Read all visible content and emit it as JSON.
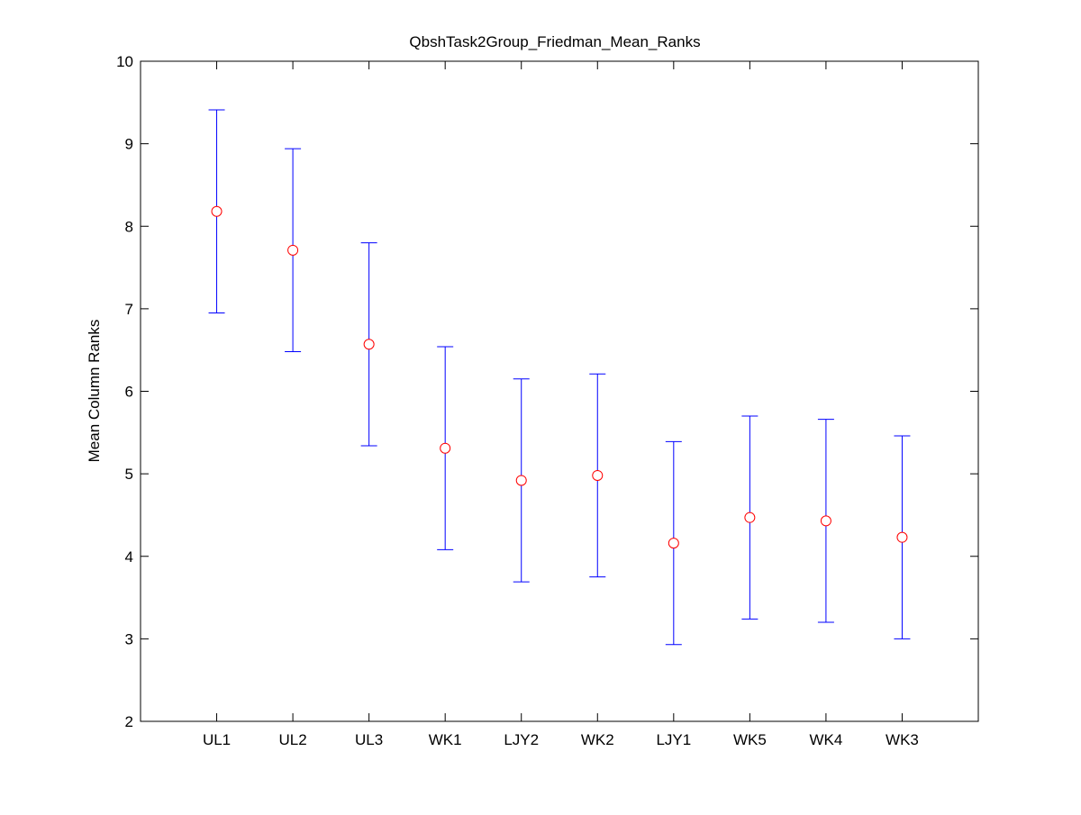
{
  "chart_data": {
    "type": "scatter",
    "title": "QbshTask2Group_Friedman_Mean_Ranks",
    "xlabel": "",
    "ylabel": "Mean Column Ranks",
    "categories": [
      "UL1",
      "UL2",
      "UL3",
      "WK1",
      "LJY2",
      "WK2",
      "LJY1",
      "WK5",
      "WK4",
      "WK3"
    ],
    "means": [
      8.18,
      7.71,
      6.57,
      5.31,
      4.92,
      4.98,
      4.16,
      4.47,
      4.43,
      4.23
    ],
    "lower": [
      6.95,
      6.48,
      5.34,
      4.08,
      3.69,
      3.75,
      2.93,
      3.24,
      3.2,
      3.0
    ],
    "upper": [
      9.41,
      8.94,
      7.8,
      6.54,
      6.15,
      6.21,
      5.39,
      5.7,
      5.66,
      5.46
    ],
    "ylim": [
      2,
      10
    ],
    "yticks": [
      2,
      3,
      4,
      5,
      6,
      7,
      8,
      9,
      10
    ],
    "grid": false,
    "colors": {
      "errorbar": "#0000ff",
      "marker": "#ff0000",
      "axes": "#000000"
    }
  }
}
